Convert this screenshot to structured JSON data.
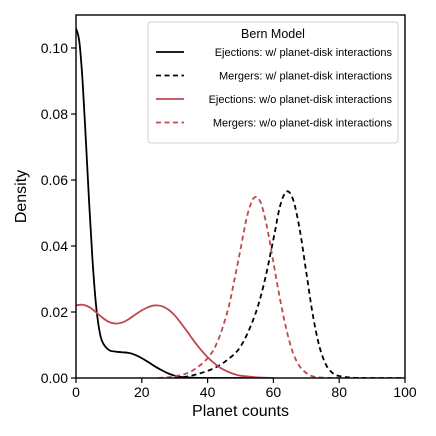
{
  "chart_data": {
    "type": "line",
    "xlabel": "Planet counts",
    "ylabel": "Density",
    "xlim": [
      0,
      100
    ],
    "ylim": [
      0,
      0.11
    ],
    "xticks": [
      0,
      20,
      40,
      60,
      80,
      100
    ],
    "xtick_labels": [
      "0",
      "20",
      "40",
      "60",
      "80",
      "100"
    ],
    "yticks": [
      0,
      0.02,
      0.04,
      0.06,
      0.08,
      0.1
    ],
    "ytick_labels": [
      "0.00",
      "0.02",
      "0.04",
      "0.06",
      "0.08",
      "0.10"
    ],
    "grid": false,
    "legend": {
      "title": "Bern Model",
      "placement": "top-right"
    },
    "series": [
      {
        "name": "Ejections: w/ planet-disk interactions",
        "color": "#000000",
        "style": "solid",
        "x": [
          0,
          1,
          2,
          3,
          4,
          5,
          6,
          7,
          8,
          10,
          12,
          14,
          16,
          18,
          20,
          22,
          24,
          26,
          28,
          30,
          32,
          35,
          40,
          50,
          60
        ],
        "y": [
          0.106,
          0.102,
          0.09,
          0.072,
          0.053,
          0.036,
          0.023,
          0.015,
          0.011,
          0.0085,
          0.008,
          0.0078,
          0.0076,
          0.007,
          0.006,
          0.0048,
          0.0035,
          0.0024,
          0.0014,
          0.0007,
          0.0003,
          0.0001,
          0.0,
          0.0,
          0.0
        ]
      },
      {
        "name": "Mergers: w/ planet-disk interactions",
        "color": "#000000",
        "style": "dashed",
        "x": [
          30,
          34,
          38,
          42,
          46,
          50,
          54,
          57,
          60,
          62,
          64,
          66,
          68,
          70,
          72,
          74,
          76,
          78,
          80,
          84,
          90,
          100
        ],
        "y": [
          0.0,
          0.0005,
          0.0015,
          0.003,
          0.0055,
          0.0095,
          0.018,
          0.028,
          0.042,
          0.052,
          0.0565,
          0.054,
          0.045,
          0.032,
          0.019,
          0.0095,
          0.004,
          0.0015,
          0.0006,
          0.0001,
          0.0,
          0.0
        ]
      },
      {
        "name": "Ejections: w/o planet-disk interactions",
        "color": "#c0474f",
        "style": "solid",
        "x": [
          0,
          2,
          4,
          6,
          8,
          10,
          12,
          14,
          16,
          18,
          20,
          22,
          24,
          26,
          28,
          30,
          32,
          34,
          36,
          38,
          40,
          42,
          44,
          46,
          48,
          50,
          55,
          60
        ],
        "y": [
          0.022,
          0.0222,
          0.0215,
          0.02,
          0.0183,
          0.017,
          0.0165,
          0.0168,
          0.0178,
          0.0192,
          0.0205,
          0.0215,
          0.022,
          0.0218,
          0.0208,
          0.019,
          0.0165,
          0.0138,
          0.011,
          0.0085,
          0.0063,
          0.0045,
          0.003,
          0.002,
          0.0012,
          0.0007,
          0.0002,
          0.0
        ]
      },
      {
        "name": "Mergers: w/o planet-disk interactions",
        "color": "#c0474f",
        "style": "dashed",
        "x": [
          25,
          30,
          35,
          40,
          43,
          46,
          48,
          50,
          52,
          54,
          56,
          58,
          60,
          62,
          64,
          66,
          68,
          70,
          72,
          75,
          80
        ],
        "y": [
          0.0,
          0.0005,
          0.002,
          0.006,
          0.011,
          0.02,
          0.029,
          0.039,
          0.049,
          0.0545,
          0.0535,
          0.046,
          0.035,
          0.024,
          0.0145,
          0.0075,
          0.0035,
          0.0015,
          0.0005,
          0.0001,
          0.0
        ]
      }
    ]
  }
}
